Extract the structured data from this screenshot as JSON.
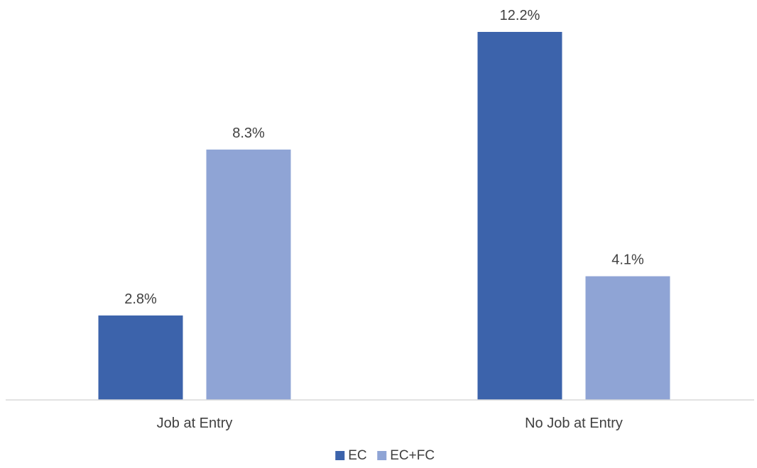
{
  "chart_data": {
    "type": "bar",
    "categories": [
      "Job at Entry",
      "No Job at Entry"
    ],
    "series": [
      {
        "name": "EC",
        "values": [
          2.8,
          12.2
        ],
        "labels": [
          "2.8%",
          "12.2%"
        ],
        "color": "#3c63ab"
      },
      {
        "name": "EC+FC",
        "values": [
          8.3,
          4.1
        ],
        "labels": [
          "8.3%",
          "4.1%"
        ],
        "color": "#8fa4d5"
      }
    ],
    "value_suffix": "%",
    "ylim": [
      0,
      12.2
    ],
    "grid": false,
    "legend_position": "bottom",
    "axis_color": "#d9d9d9"
  }
}
